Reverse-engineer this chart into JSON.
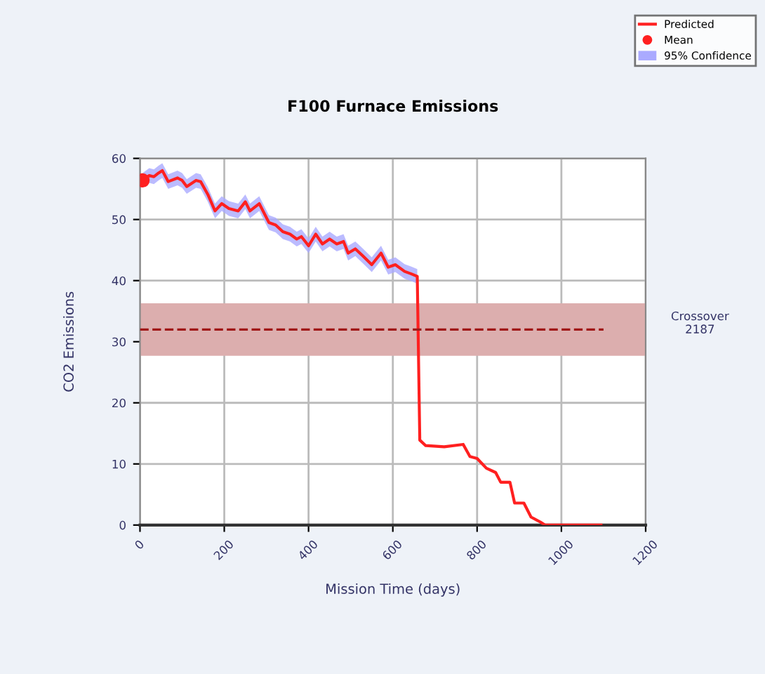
{
  "chart_data": {
    "type": "line",
    "title": "F100 Furnace Emissions",
    "xlabel": "Mission Time (days)",
    "ylabel": "CO2 Emissions",
    "xlim": [
      0,
      1200
    ],
    "xticks": [
      0,
      200,
      400,
      600,
      800,
      1000,
      1200
    ],
    "ylim": [
      0,
      60
    ],
    "yticks": [
      0,
      10,
      20,
      30,
      40,
      50,
      60
    ],
    "grid": true,
    "legend": "top right",
    "series": [
      {
        "name": "Predicted",
        "type": "line",
        "color": "#ff2020",
        "x": [
          6,
          22,
          33,
          44,
          53,
          67,
          89,
          100,
          111,
          133,
          144,
          161,
          178,
          194,
          211,
          233,
          250,
          261,
          283,
          306,
          322,
          339,
          356,
          372,
          383,
          400,
          417,
          433,
          450,
          467,
          483,
          494,
          511,
          528,
          550,
          572,
          589,
          606,
          628,
          644,
          658,
          664,
          678,
          722,
          767,
          783,
          800,
          822,
          844,
          856,
          878,
          889,
          911,
          928,
          950,
          961,
          1094
        ],
        "values": [
          56.4,
          57.2,
          57,
          57.6,
          58,
          56.2,
          56.8,
          56.4,
          55.4,
          56.4,
          56.2,
          54.1,
          51.4,
          52.6,
          51.8,
          51.4,
          52.9,
          51.4,
          52.6,
          49.5,
          49.1,
          48,
          47.6,
          46.8,
          47.2,
          45.7,
          47.6,
          46,
          46.8,
          46,
          46.4,
          44.5,
          45.2,
          44.1,
          42.6,
          44.5,
          42.2,
          42.6,
          41.5,
          41.1,
          40.7,
          13.9,
          13,
          12.8,
          13.2,
          11.2,
          10.9,
          9.3,
          8.6,
          7,
          7,
          3.6,
          3.6,
          1.3,
          0.5,
          0,
          0
        ],
        "lower": [
          55.2,
          56,
          55.8,
          56.4,
          56.8,
          55,
          55.6,
          55.2,
          54.2,
          55.2,
          55,
          52.9,
          50.2,
          51.4,
          50.6,
          50.2,
          51.7,
          50.2,
          51.4,
          48.3,
          47.9,
          46.8,
          46.4,
          45.6,
          46,
          44.5,
          46.4,
          44.8,
          45.6,
          44.8,
          45.2,
          43.3,
          44,
          42.9,
          41.4,
          43.3,
          41,
          41.4,
          40.3,
          39.9,
          39.5,
          null,
          null,
          null,
          null,
          null,
          null,
          null,
          null,
          null,
          null,
          null,
          null,
          null,
          null,
          null,
          null
        ],
        "upper": [
          57.6,
          58.4,
          58.2,
          58.8,
          59.2,
          57.4,
          58,
          57.6,
          56.6,
          57.6,
          57.4,
          55.3,
          52.6,
          53.8,
          53,
          52.6,
          54.1,
          52.6,
          53.8,
          50.7,
          50.3,
          49.2,
          48.8,
          48,
          48.4,
          46.9,
          48.8,
          47.2,
          48,
          47.2,
          47.6,
          45.7,
          46.4,
          45.3,
          43.8,
          45.7,
          43.4,
          43.8,
          42.7,
          42.3,
          41.9,
          null,
          null,
          null,
          null,
          null,
          null,
          null,
          null,
          null,
          null,
          null,
          null,
          null,
          null,
          null,
          null
        ]
      },
      {
        "name": "Mean",
        "type": "scatter",
        "color": "#ff2020",
        "marker": "circle",
        "x": [
          6
        ],
        "values": [
          56.4
        ]
      },
      {
        "name": "95% Confidence",
        "type": "area",
        "color": "#aaaaff"
      },
      {
        "color": "#a01818",
        "line_style": "dashed",
        "x": [
          0,
          1100
        ],
        "values": [
          32,
          32
        ]
      }
    ],
    "bands": [
      {
        "axis": "y",
        "from": 27.7,
        "to": 36.3,
        "color": "#dcaeae"
      }
    ],
    "annotations": [
      "Crossover\n2187"
    ]
  }
}
